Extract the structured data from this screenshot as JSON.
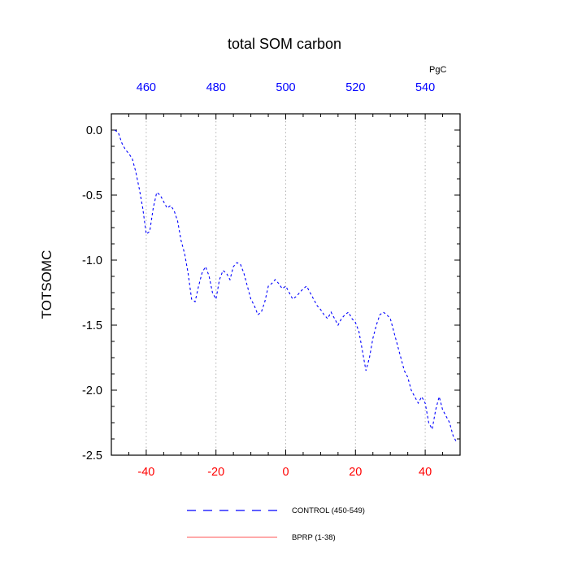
{
  "title": "total SOM carbon",
  "top_axis_unit": "PgC",
  "y_axis_label": "TOTSOMC",
  "colors": {
    "control_line": "#0000ff",
    "bprp_line": "#ff5555",
    "grid": "#b3b3b3",
    "frame": "#000000",
    "top_tick_label": "#0000ff",
    "bottom_tick_label": "#ff0000",
    "y_tick_label": "#000000"
  },
  "legend": {
    "items": [
      {
        "label": "CONTROL (450-549)",
        "color": "#0000ff",
        "style": "dashed"
      },
      {
        "label": "BPRP (1-38)",
        "color": "#ff5555",
        "style": "solid"
      }
    ]
  },
  "chart_data": {
    "type": "line",
    "title": "total SOM carbon",
    "ylabel": "TOTSOMC",
    "top_axis_label": "PgC",
    "xlim": [
      -50,
      50
    ],
    "ylim": [
      -2.5,
      0.125
    ],
    "x_bottom_ticks": [
      -40,
      -20,
      0,
      20,
      40
    ],
    "x_top_ticks": [
      460,
      480,
      500,
      520,
      540
    ],
    "top_tick_offset": 500,
    "y_ticks": [
      0.0,
      -0.5,
      -1.0,
      -1.5,
      -2.0,
      -2.5
    ],
    "grid": "vertical-dotted",
    "legend_position": "below",
    "series": [
      {
        "name": "CONTROL (450-549)",
        "color": "#0000ff",
        "dash": true,
        "x": [
          -49,
          -48,
          -47,
          -46,
          -45,
          -44,
          -43,
          -42,
          -41,
          -40,
          -39,
          -38,
          -37,
          -36,
          -35,
          -34,
          -33,
          -32,
          -31,
          -30,
          -29,
          -28,
          -27,
          -26,
          -25,
          -24,
          -23,
          -22,
          -21,
          -20,
          -19,
          -18,
          -17,
          -16,
          -15,
          -14,
          -13,
          -12,
          -11,
          -10,
          -9,
          -8,
          -7,
          -6,
          -5,
          -4,
          -3,
          -2,
          -1,
          0,
          1,
          2,
          3,
          4,
          5,
          6,
          7,
          8,
          9,
          10,
          11,
          12,
          13,
          14,
          15,
          16,
          17,
          18,
          19,
          20,
          21,
          22,
          23,
          24,
          25,
          26,
          27,
          28,
          29,
          30,
          31,
          32,
          33,
          34,
          35,
          36,
          37,
          38,
          39,
          40,
          41,
          42,
          43,
          44,
          45,
          46,
          47,
          48,
          49
        ],
        "y": [
          0.0,
          -0.02,
          -0.1,
          -0.15,
          -0.18,
          -0.22,
          -0.32,
          -0.45,
          -0.6,
          -0.8,
          -0.78,
          -0.6,
          -0.48,
          -0.5,
          -0.55,
          -0.6,
          -0.58,
          -0.62,
          -0.7,
          -0.85,
          -0.95,
          -1.1,
          -1.3,
          -1.32,
          -1.2,
          -1.1,
          -1.05,
          -1.12,
          -1.25,
          -1.3,
          -1.15,
          -1.08,
          -1.1,
          -1.15,
          -1.05,
          -1.02,
          -1.03,
          -1.1,
          -1.2,
          -1.3,
          -1.35,
          -1.42,
          -1.4,
          -1.32,
          -1.2,
          -1.18,
          -1.15,
          -1.18,
          -1.22,
          -1.2,
          -1.25,
          -1.3,
          -1.28,
          -1.25,
          -1.22,
          -1.2,
          -1.25,
          -1.3,
          -1.35,
          -1.38,
          -1.42,
          -1.45,
          -1.4,
          -1.45,
          -1.5,
          -1.45,
          -1.42,
          -1.4,
          -1.45,
          -1.48,
          -1.55,
          -1.7,
          -1.85,
          -1.75,
          -1.6,
          -1.5,
          -1.42,
          -1.4,
          -1.42,
          -1.45,
          -1.55,
          -1.65,
          -1.75,
          -1.85,
          -1.9,
          -2.0,
          -2.05,
          -2.1,
          -2.05,
          -2.1,
          -2.25,
          -2.3,
          -2.15,
          -2.05,
          -2.15,
          -2.2,
          -2.25,
          -2.35,
          -2.4
        ]
      },
      {
        "name": "BPRP (1-38)",
        "color": "#ff5555",
        "dash": false,
        "x": [],
        "y": []
      }
    ]
  }
}
